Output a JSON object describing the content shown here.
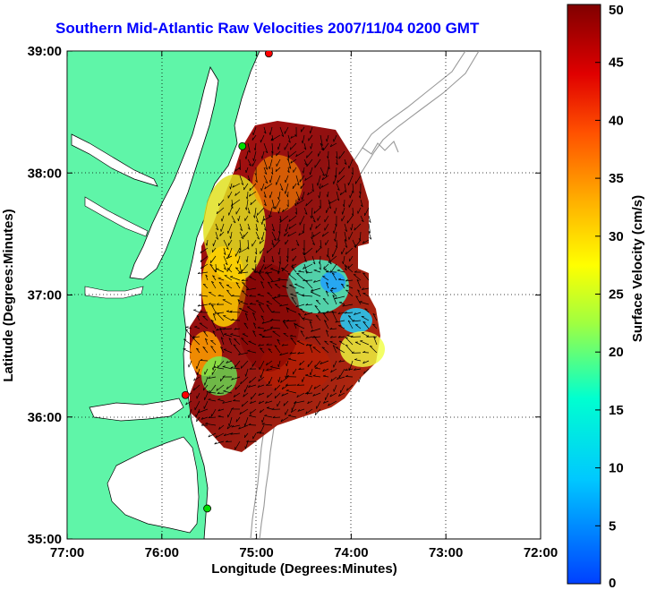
{
  "title": "Southern Mid-Atlantic Raw Velocities 2007/11/04 0200 GMT",
  "map": {
    "xlabel": "Longitude (Degrees:Minutes)",
    "ylabel": "Latitude (Degrees:Minutes)",
    "x_ticks": [
      {
        "lon": -77,
        "label": "77:00"
      },
      {
        "lon": -76,
        "label": "76:00"
      },
      {
        "lon": -75,
        "label": "75:00"
      },
      {
        "lon": -74,
        "label": "74:00"
      },
      {
        "lon": -73,
        "label": "73:00"
      },
      {
        "lon": -72,
        "label": "72:00"
      }
    ],
    "y_ticks": [
      {
        "lat": 39,
        "label": "39:00"
      },
      {
        "lat": 38,
        "label": "38:00"
      },
      {
        "lat": 37,
        "label": "37:00"
      },
      {
        "lat": 36,
        "label": "36:00"
      },
      {
        "lat": 35,
        "label": "35:00"
      }
    ],
    "lon_range": [
      -77,
      -72
    ],
    "lat_range": [
      35,
      39
    ],
    "grid": "dotted",
    "land_color": "#5ff5a8",
    "stations": [
      {
        "lon": -74.87,
        "lat": 38.98,
        "color": "#ff0000"
      },
      {
        "lon": -75.15,
        "lat": 38.22,
        "color": "#00dd00"
      },
      {
        "lon": -75.75,
        "lat": 36.18,
        "color": "#ff0000"
      },
      {
        "lon": -75.52,
        "lat": 35.25,
        "color": "#00dd00"
      }
    ]
  },
  "colorbar": {
    "label": "Surface Velocity (cm/s)",
    "min": 0,
    "max": 50,
    "ticks": [
      "0",
      "5",
      "10",
      "15",
      "20",
      "25",
      "30",
      "35",
      "40",
      "45",
      "50"
    ],
    "colormap": "jet"
  }
}
